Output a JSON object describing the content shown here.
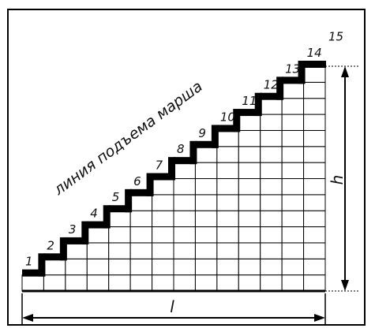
{
  "diagram": {
    "caption": "линия подъема марша",
    "step_labels": [
      "1",
      "2",
      "3",
      "4",
      "5",
      "6",
      "7",
      "8",
      "9",
      "10",
      "11",
      "12",
      "13",
      "14",
      "15"
    ],
    "height_label": "h",
    "length_label": "l",
    "step_count": 14
  }
}
